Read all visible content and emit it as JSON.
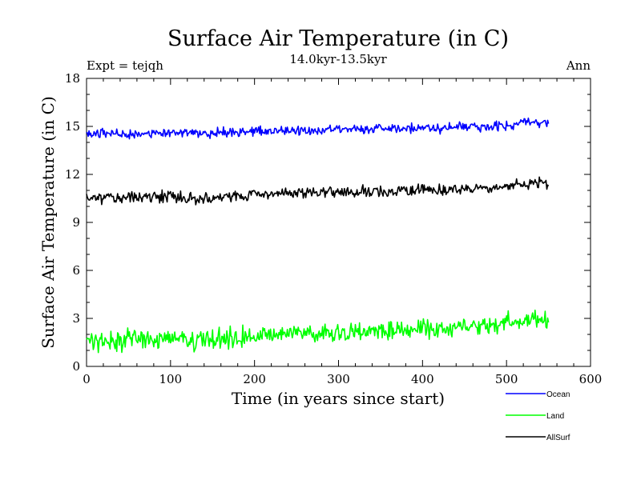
{
  "chart_data": {
    "type": "line",
    "title": "Surface Air Temperature (in C)",
    "subtitle": "14.0kyr-13.5kyr",
    "experiment_label": "Expt = tejqh",
    "season_label": "Ann",
    "xlabel": "Time (in years since start)",
    "ylabel": "Surface Air Temperature (in C)",
    "xlim": [
      0,
      600
    ],
    "ylim": [
      0,
      18
    ],
    "x_ticks": [
      0,
      100,
      200,
      300,
      400,
      500,
      600
    ],
    "y_ticks": [
      0,
      3,
      6,
      9,
      12,
      15,
      18
    ],
    "grid": false,
    "legend_position": "bottom-right, outside plot",
    "series_x_range": [
      0,
      550
    ],
    "series": [
      {
        "name": "Ocean",
        "color": "#0000ff",
        "approx_start": 14.5,
        "approx_end": 15.2,
        "anchors": [
          [
            0,
            14.6
          ],
          [
            50,
            14.5
          ],
          [
            100,
            14.6
          ],
          [
            150,
            14.55
          ],
          [
            200,
            14.7
          ],
          [
            250,
            14.75
          ],
          [
            300,
            14.8
          ],
          [
            350,
            14.85
          ],
          [
            400,
            14.9
          ],
          [
            450,
            14.95
          ],
          [
            500,
            15.05
          ],
          [
            520,
            15.25
          ],
          [
            550,
            15.2
          ]
        ],
        "noise": 0.22
      },
      {
        "name": "Land",
        "color": "#00ff00",
        "approx_start": 1.6,
        "approx_end": 2.9,
        "anchors": [
          [
            0,
            1.75
          ],
          [
            30,
            1.55
          ],
          [
            60,
            1.7
          ],
          [
            100,
            1.8
          ],
          [
            130,
            1.6
          ],
          [
            170,
            1.8
          ],
          [
            200,
            1.9
          ],
          [
            250,
            2.05
          ],
          [
            300,
            2.1
          ],
          [
            350,
            2.25
          ],
          [
            400,
            2.35
          ],
          [
            450,
            2.45
          ],
          [
            480,
            2.5
          ],
          [
            500,
            2.7
          ],
          [
            525,
            2.9
          ],
          [
            550,
            2.85
          ]
        ],
        "noise": 0.45
      },
      {
        "name": "AllSurf",
        "color": "#000000",
        "approx_start": 10.5,
        "approx_end": 11.4,
        "anchors": [
          [
            0,
            10.55
          ],
          [
            50,
            10.55
          ],
          [
            100,
            10.65
          ],
          [
            130,
            10.5
          ],
          [
            200,
            10.75
          ],
          [
            250,
            10.85
          ],
          [
            300,
            10.9
          ],
          [
            350,
            10.95
          ],
          [
            400,
            11.0
          ],
          [
            450,
            11.05
          ],
          [
            500,
            11.15
          ],
          [
            525,
            11.4
          ],
          [
            550,
            11.35
          ]
        ],
        "noise": 0.27
      }
    ]
  }
}
